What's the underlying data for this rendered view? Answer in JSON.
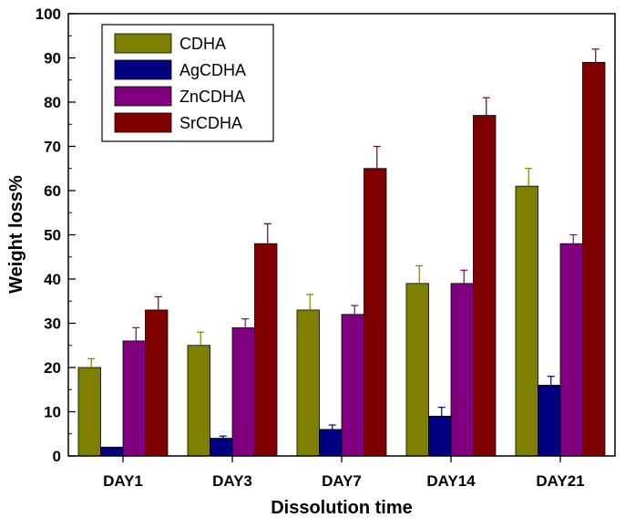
{
  "chart_data": {
    "type": "bar",
    "title": "",
    "xlabel": "Dissolution time",
    "ylabel": "Weight loss%",
    "ylim": [
      0,
      100
    ],
    "yticks": [
      0,
      10,
      20,
      30,
      40,
      50,
      60,
      70,
      80,
      90,
      100
    ],
    "categories": [
      "DAY1",
      "DAY3",
      "DAY7",
      "DAY14",
      "DAY21"
    ],
    "legend_position": "top-left",
    "series": [
      {
        "name": "CDHA",
        "color": "#808000",
        "values": [
          20,
          25,
          33,
          39,
          61
        ],
        "errors": [
          2,
          3,
          3.5,
          4,
          4
        ]
      },
      {
        "name": "AgCDHA",
        "color": "#000080",
        "values": [
          2,
          4,
          6,
          9,
          16
        ],
        "errors": [
          0,
          0.5,
          1,
          2,
          2
        ]
      },
      {
        "name": "ZnCDHA",
        "color": "#800080",
        "values": [
          26,
          29,
          32,
          39,
          48
        ],
        "errors": [
          3,
          2,
          2,
          3,
          2
        ]
      },
      {
        "name": "SrCDHA",
        "color": "#800000",
        "values": [
          33,
          48,
          65,
          77,
          89
        ],
        "errors": [
          3,
          4.5,
          5,
          4,
          3
        ]
      }
    ]
  }
}
